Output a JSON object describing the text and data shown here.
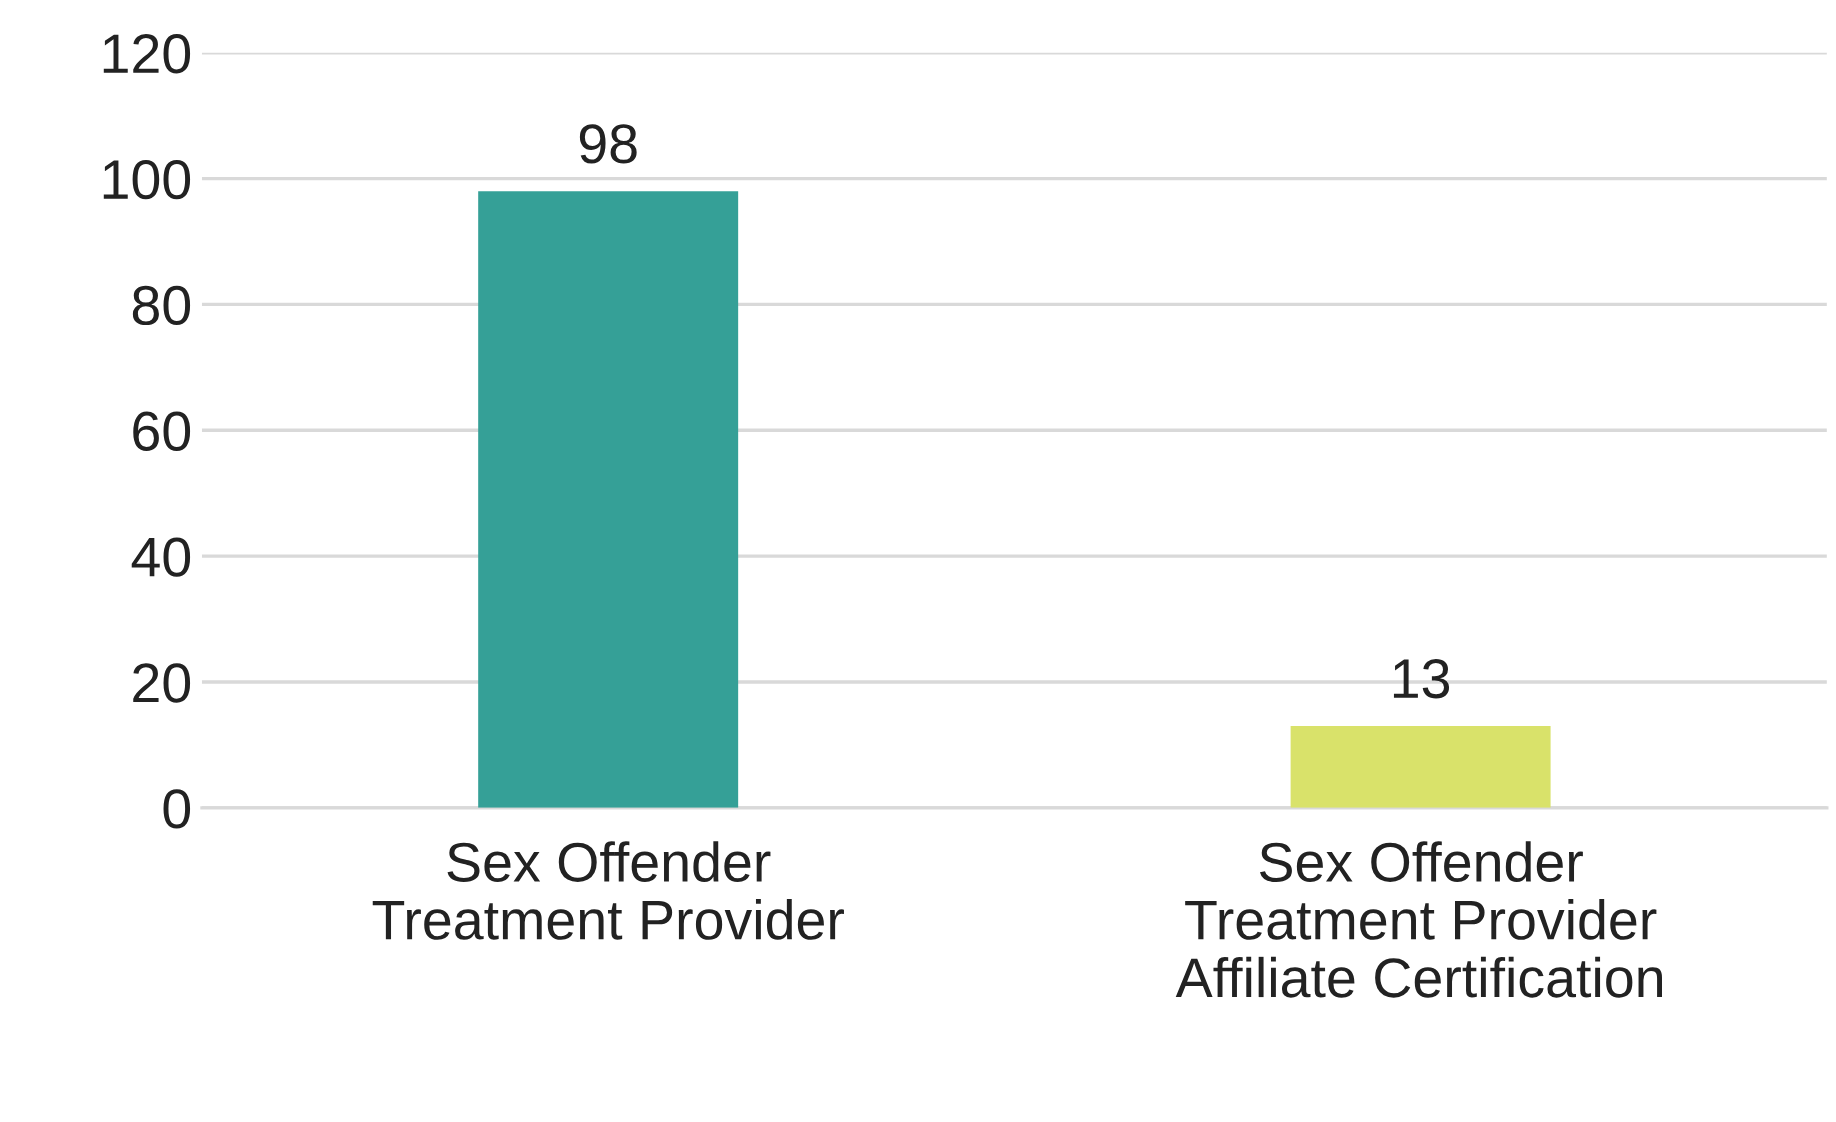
{
  "chart_data": {
    "type": "bar",
    "categories": [
      "Sex Offender\nTreatment Provider",
      "Sex Offender\nTreatment Provider\nAffiliate Certification"
    ],
    "values": [
      98,
      13
    ],
    "colors": [
      "#35a097",
      "#d9e26a"
    ],
    "ylim": [
      0,
      120
    ],
    "yticks": [
      0,
      20,
      40,
      60,
      80,
      100,
      120
    ],
    "grid": "y",
    "data_labels": true,
    "legend": false
  }
}
